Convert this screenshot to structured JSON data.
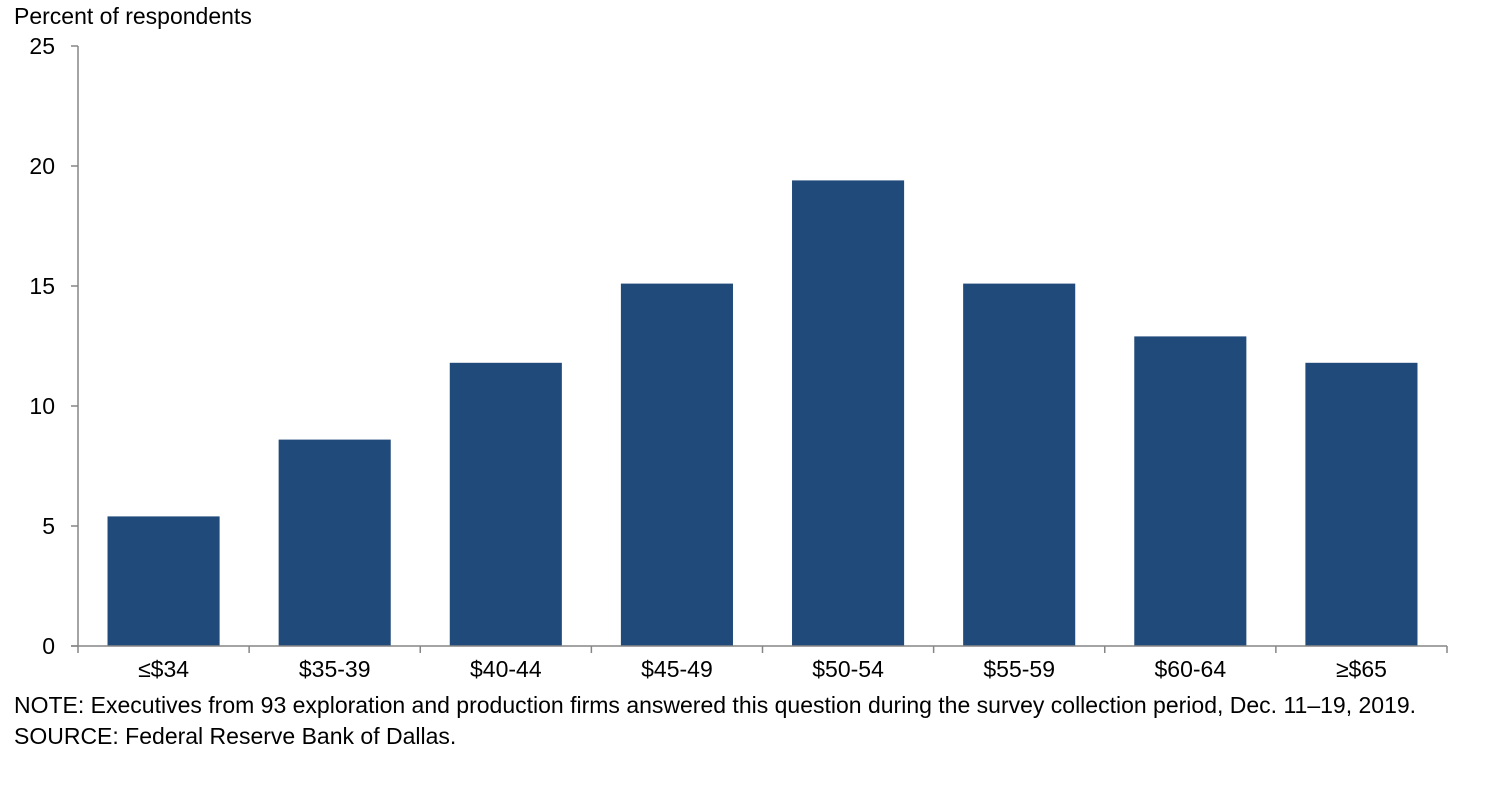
{
  "chart_data": {
    "type": "bar",
    "ylabel": "Percent of respondents",
    "xlabel": "",
    "categories": [
      "≤$34",
      "$35-39",
      "$40-44",
      "$45-49",
      "$50-54",
      "$55-59",
      "$60-64",
      "≥$65"
    ],
    "values": [
      5.4,
      8.6,
      11.8,
      15.1,
      19.4,
      15.1,
      12.9,
      11.8
    ],
    "ylim": [
      0,
      25
    ],
    "yticks": [
      0,
      5,
      10,
      15,
      20,
      25
    ],
    "grid": false,
    "legend": "none",
    "bar_color": "#204a7a"
  },
  "notes": {
    "note": "NOTE: Executives from 93 exploration and production firms answered this question during the survey collection period, Dec. 11–19, 2019.",
    "source": "SOURCE: Federal Reserve Bank of Dallas."
  }
}
